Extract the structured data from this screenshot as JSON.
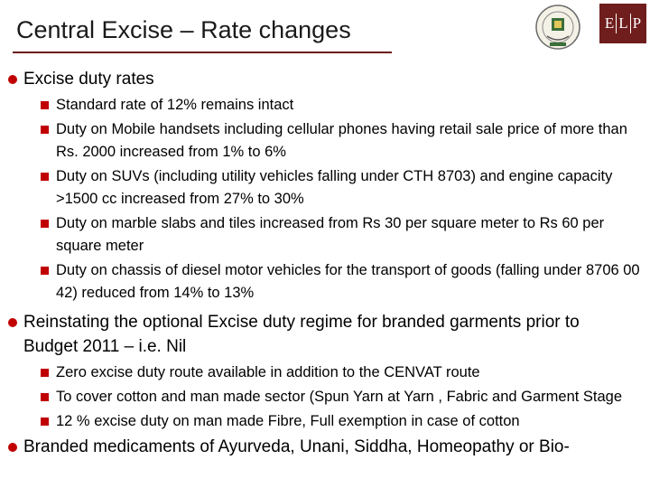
{
  "title": "Central Excise – Rate changes",
  "logo": {
    "letters": [
      "E",
      "L",
      "P"
    ],
    "box_color": "#6f1d1d",
    "seal_icon": "emblem-seal-icon"
  },
  "accent_color": "#c00000",
  "sections": [
    {
      "text": "Excise duty rates",
      "items": [
        "Standard rate of 12% remains intact",
        "Duty on Mobile handsets including cellular phones having retail sale price of more than Rs. 2000 increased from 1% to 6%",
        "Duty on SUVs (including utility vehicles falling under CTH 8703) and engine capacity >1500 cc increased from 27% to 30%",
        "Duty on marble slabs and tiles increased from Rs 30 per square meter to Rs 60 per square meter",
        "Duty on chassis of diesel motor vehicles for the transport of goods (falling under 8706 00 42) reduced from 14% to 13%"
      ]
    },
    {
      "text": "Reinstating the optional Excise duty regime for branded garments prior to Budget 2011 – i.e. Nil",
      "items": [
        "Zero excise duty route available in addition to the CENVAT route",
        "To cover cotton and man made sector (Spun Yarn at Yarn , Fabric and Garment Stage",
        "12 % excise duty on man made Fibre, Full exemption in case of cotton"
      ]
    },
    {
      "text": "Branded medicaments of Ayurveda, Unani, Siddha, Homeopathy or Bio-",
      "items": []
    }
  ]
}
